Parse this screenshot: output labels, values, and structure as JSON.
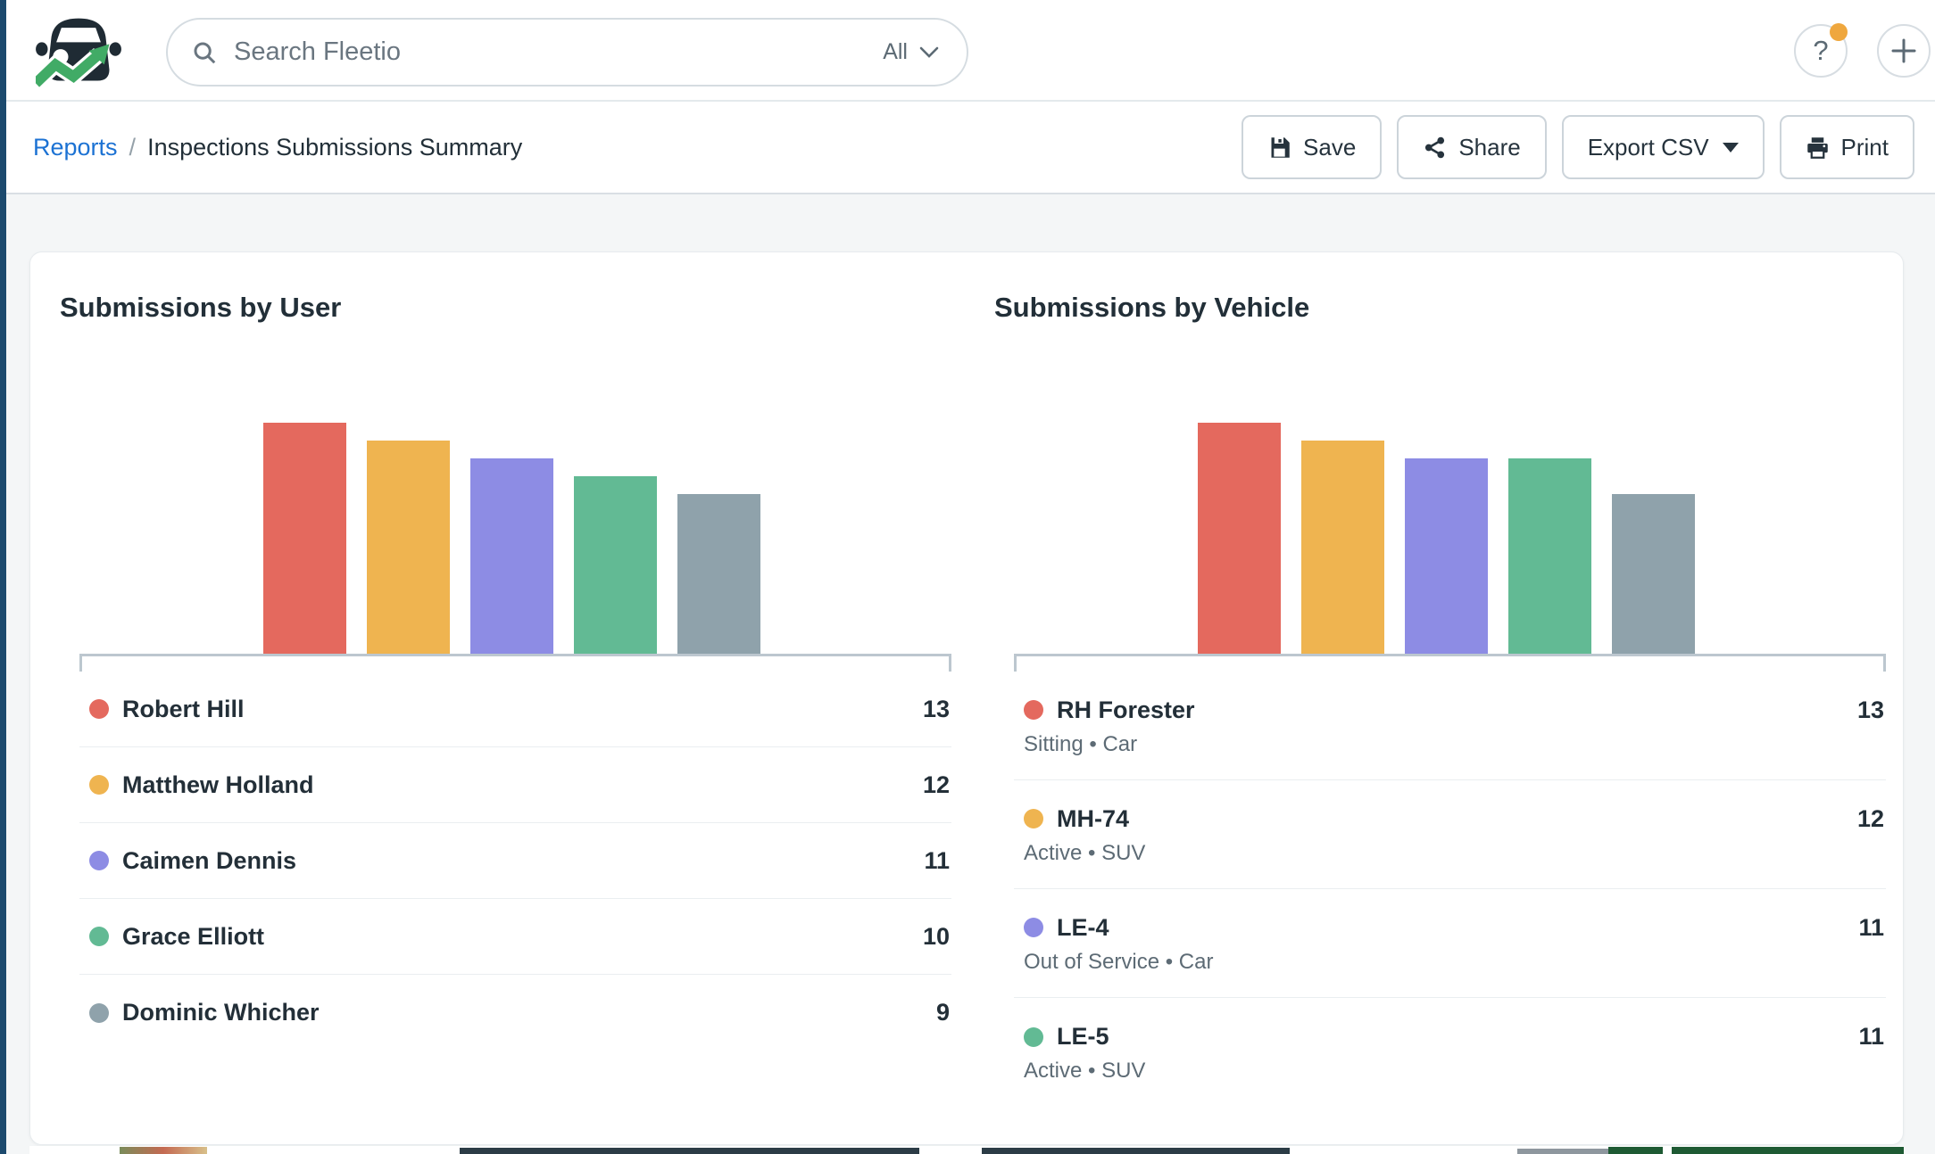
{
  "app": {
    "name": "Fleetio"
  },
  "header": {
    "search": {
      "placeholder": "Search Fleetio",
      "scope": "All"
    },
    "help_button": "?"
  },
  "breadcrumb": {
    "parent": "Reports",
    "separator": "/",
    "current": "Inspections Submissions Summary"
  },
  "toolbar": {
    "save": "Save",
    "share": "Share",
    "export_csv": "Export CSV",
    "print": "Print"
  },
  "colors": {
    "edge_strip": "#1c4a6e",
    "accent_blue": "#1c72d3",
    "notification_dot": "#efa73e",
    "axis": "#bcc7cf",
    "bar_red": "#e4695e",
    "bar_orange": "#efb450",
    "bar_purple": "#8d8ce4",
    "bar_green": "#62ba94",
    "bar_gray": "#8fa2ab",
    "banner_green": "#1e5a33"
  },
  "chart_data": [
    {
      "type": "bar",
      "title": "Submissions by User",
      "categories": [
        "Robert Hill",
        "Matthew Holland",
        "Caimen Dennis",
        "Grace Elliott",
        "Dominic Whicher"
      ],
      "values": [
        13,
        12,
        11,
        10,
        9
      ],
      "colors": [
        "#e4695e",
        "#efb450",
        "#8d8ce4",
        "#62ba94",
        "#8fa2ab"
      ],
      "ylim": [
        0,
        13
      ],
      "grid": false,
      "legend_position": "below",
      "legend": [
        {
          "name": "Robert Hill",
          "value": "13"
        },
        {
          "name": "Matthew Holland",
          "value": "12"
        },
        {
          "name": "Caimen Dennis",
          "value": "11"
        },
        {
          "name": "Grace Elliott",
          "value": "10"
        },
        {
          "name": "Dominic Whicher",
          "value": "9"
        }
      ]
    },
    {
      "type": "bar",
      "title": "Submissions by Vehicle",
      "categories": [
        "RH Forester",
        "MH-74",
        "LE-4",
        "LE-5",
        ""
      ],
      "values": [
        13,
        12,
        11,
        11,
        9
      ],
      "colors": [
        "#e4695e",
        "#efb450",
        "#8d8ce4",
        "#62ba94",
        "#8fa2ab"
      ],
      "ylim": [
        0,
        13
      ],
      "grid": false,
      "legend_position": "below",
      "legend": [
        {
          "name": "RH Forester",
          "meta": "Sitting • Car",
          "value": "13"
        },
        {
          "name": "MH-74",
          "meta": "Active • SUV",
          "value": "12"
        },
        {
          "name": "LE-4",
          "meta": "Out of Service • Car",
          "value": "11"
        },
        {
          "name": "LE-5",
          "meta": "Active • SUV",
          "value": "11"
        }
      ]
    }
  ]
}
